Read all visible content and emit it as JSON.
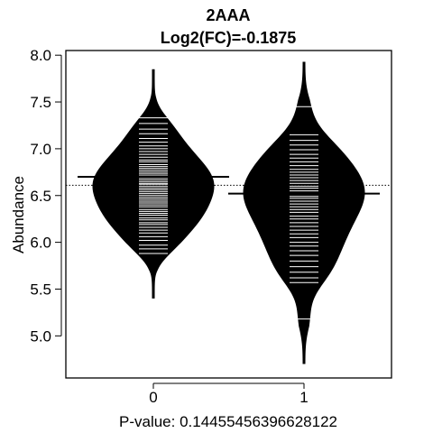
{
  "chart_data": {
    "type": "beanplot",
    "title": "2AAA",
    "subtitle": "Log2(FC)=-0.1875",
    "xlabel": "P-value: 0.14455456396628122",
    "ylabel": "Abundance",
    "categories": [
      "0",
      "1"
    ],
    "y_ticks": [
      "5.0",
      "5.5",
      "6.0",
      "6.5",
      "7.0",
      "7.5",
      "8.0"
    ],
    "ylim": [
      4.55,
      8.05
    ],
    "overall_mean": 6.61,
    "groups": [
      {
        "name": "0",
        "mean": 6.7,
        "min": 5.4,
        "max": 7.85,
        "density_peak": 6.8,
        "observations": [
          5.88,
          5.93,
          5.97,
          6.02,
          6.06,
          6.1,
          6.13,
          6.16,
          6.19,
          6.21,
          6.24,
          6.26,
          6.29,
          6.31,
          6.33,
          6.35,
          6.38,
          6.4,
          6.42,
          6.44,
          6.46,
          6.48,
          6.5,
          6.52,
          6.54,
          6.56,
          6.58,
          6.6,
          6.62,
          6.63,
          6.65,
          6.67,
          6.69,
          6.71,
          6.73,
          6.75,
          6.77,
          6.79,
          6.81,
          6.83,
          6.86,
          6.88,
          6.91,
          6.94,
          6.97,
          7.0,
          7.03,
          7.07,
          7.11,
          7.16,
          7.21,
          7.27,
          7.33
        ]
      },
      {
        "name": "1",
        "mean": 6.52,
        "min": 4.7,
        "max": 7.93,
        "density_peak": 6.55,
        "observations": [
          5.18,
          5.57,
          5.62,
          5.68,
          5.74,
          5.8,
          5.86,
          5.91,
          5.96,
          6.0,
          6.05,
          6.09,
          6.13,
          6.17,
          6.21,
          6.25,
          6.28,
          6.32,
          6.35,
          6.38,
          6.41,
          6.44,
          6.47,
          6.49,
          6.52,
          6.55,
          6.58,
          6.6,
          6.63,
          6.66,
          6.69,
          6.72,
          6.75,
          6.78,
          6.82,
          6.86,
          6.9,
          6.94,
          6.99,
          7.04,
          7.09,
          7.15,
          7.45
        ]
      }
    ],
    "colors": {
      "bean": "#000000",
      "line": "#ffffff",
      "mean_line": "#000000"
    }
  }
}
